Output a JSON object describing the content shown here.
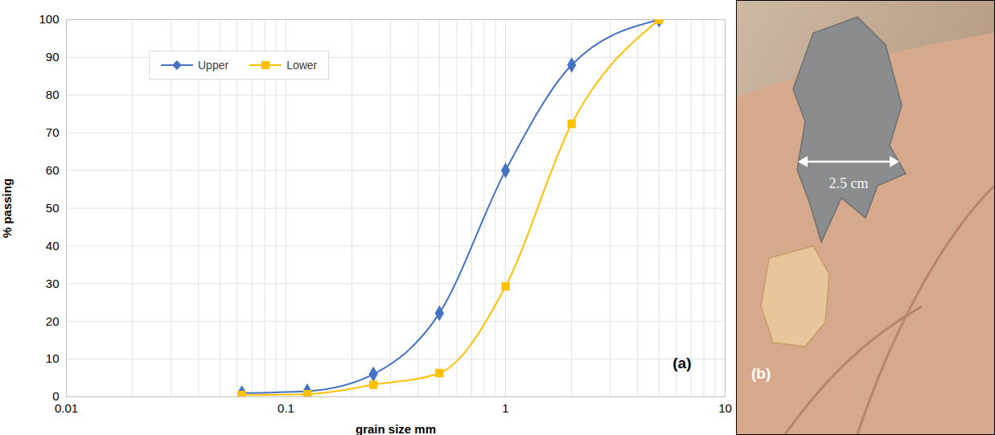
{
  "chart_data": {
    "type": "line",
    "x_label": "grain size mm",
    "y_label": "% passing",
    "annotations": [
      "(a)"
    ],
    "log": "x",
    "grid": true,
    "legend": "top-left",
    "xlim": [
      0.01,
      10
    ],
    "xticks": [
      0.01,
      0.1,
      1,
      10
    ],
    "ylim": [
      0,
      100
    ],
    "yticks": [
      0,
      10,
      20,
      30,
      40,
      50,
      60,
      70,
      80,
      90,
      100
    ],
    "x": [
      0.063,
      0.125,
      0.25,
      0.5,
      1,
      2,
      5
    ],
    "series": [
      {
        "name": "Upper",
        "color": "#4472c4",
        "marker": "diamond",
        "values": [
          1,
          1.5,
          6,
          22.2,
          60,
          88,
          100
        ]
      },
      {
        "name": "Lower",
        "color": "#ffc000",
        "marker": "square",
        "values": [
          0.5,
          0.7,
          3.2,
          6.3,
          29.3,
          72.4,
          100
        ]
      }
    ]
  },
  "image_panel": {
    "label": "(b)",
    "scale_label": "2.5 cm"
  }
}
